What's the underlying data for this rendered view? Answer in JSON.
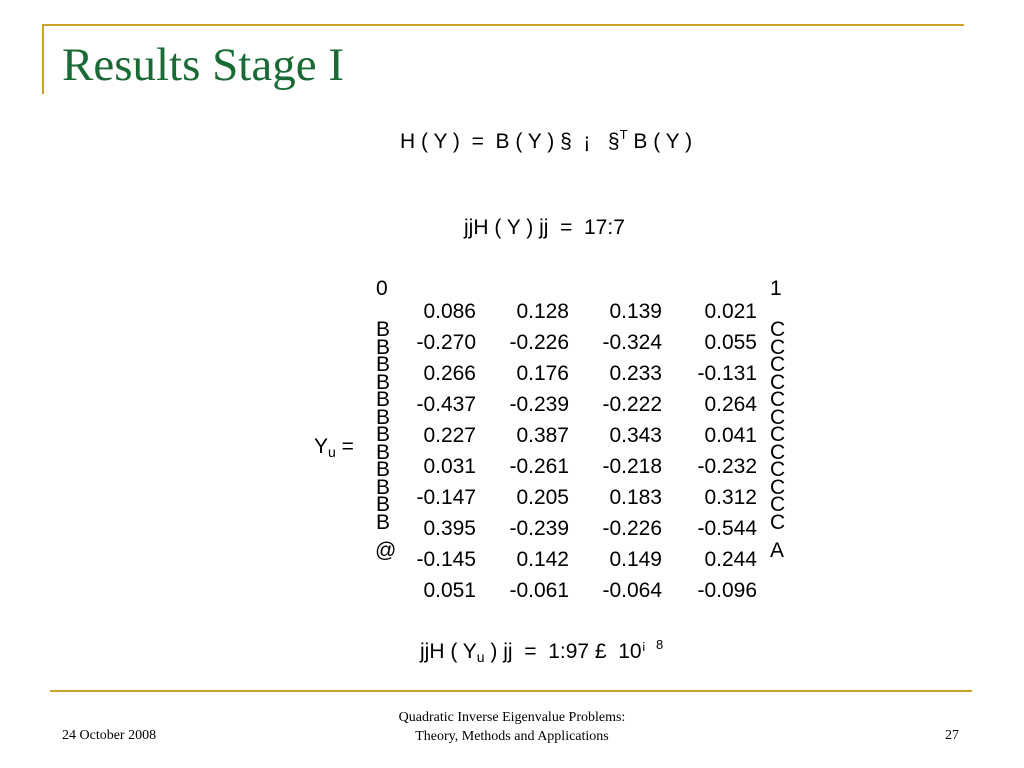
{
  "slide": {
    "title": "Results Stage I",
    "eq1": {
      "lhs": "H ( Y )  =  B ( Y ) §  ¡   §",
      "sup": "T",
      "rhs": " B ( Y )"
    },
    "eq2": "jjH ( Y ) jj  =  17:7",
    "matrix_label": "Y",
    "matrix_sub": "u",
    "matrix_eq": " =",
    "bracket_left_top": "0",
    "bracket_left_mid": "B\nB\nB\nB\nB\nB\nB\nB\nB\nB\nB\nB",
    "bracket_left_bottom": "@",
    "bracket_right_top": "1",
    "bracket_right_mid": "C\nC\nC\nC\nC\nC\nC\nC\nC\nC\nC\nC",
    "bracket_right_bottom": "A",
    "matrix": [
      [
        "0.086",
        "0.128",
        "0.139",
        "0.021"
      ],
      [
        "-0.270",
        "-0.226",
        "-0.324",
        "0.055"
      ],
      [
        "0.266",
        "0.176",
        "0.233",
        "-0.131"
      ],
      [
        "-0.437",
        "-0.239",
        "-0.222",
        "0.264"
      ],
      [
        "0.227",
        "0.387",
        "0.343",
        "0.041"
      ],
      [
        "0.031",
        "-0.261",
        "-0.218",
        "-0.232"
      ],
      [
        "-0.147",
        "0.205",
        "0.183",
        "0.312"
      ],
      [
        "0.395",
        "-0.239",
        "-0.226",
        "-0.544"
      ],
      [
        "-0.145",
        "0.142",
        "0.149",
        "0.244"
      ],
      [
        "0.051",
        "-0.061",
        "-0.064",
        "-0.096"
      ]
    ],
    "eq3": {
      "pre": "jjH ( Y",
      "sub": "u",
      "post": " ) jj  =  1:97 £  10",
      "sup1": "¡",
      "sup2": "8"
    }
  },
  "footer": {
    "date": "24 October 2008",
    "center_line1": "Quadratic Inverse Eigenvalue Problems:",
    "center_line2": "Theory, Methods and Applications",
    "page": "27"
  },
  "colors": {
    "accent": "#c9a227",
    "title": "#1a6a35"
  }
}
